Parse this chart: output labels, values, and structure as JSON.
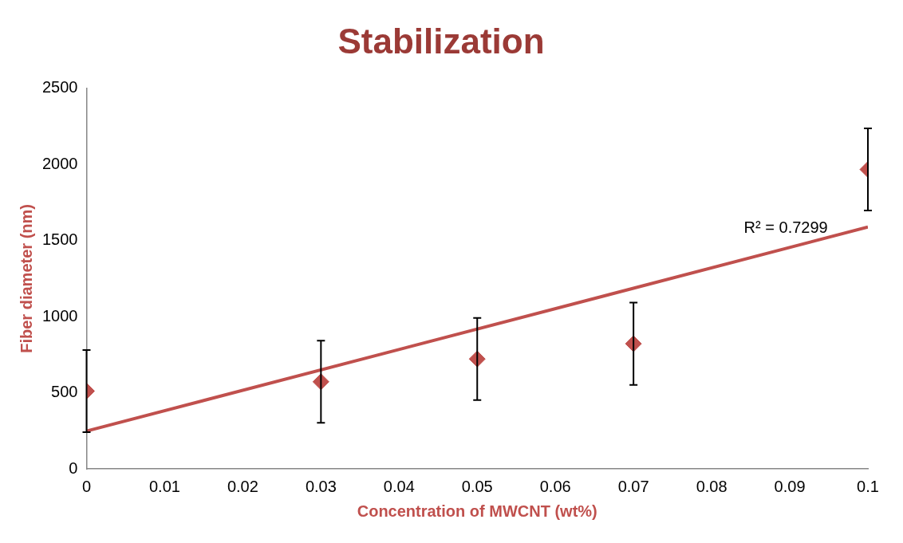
{
  "chart_data": {
    "type": "scatter",
    "title": "Stabilization",
    "xlabel": "Concentration of MWCNT (wt%)",
    "ylabel": "Fiber diameter (nm)",
    "xlim": [
      0,
      0.1
    ],
    "xticks": [
      0,
      0.01,
      0.02,
      0.03,
      0.04,
      0.05,
      0.06,
      0.07,
      0.08,
      0.09,
      0.1
    ],
    "ylim": [
      0,
      2500
    ],
    "yticks": [
      0,
      500,
      1000,
      1500,
      2000,
      2500
    ],
    "grid": false,
    "series": [
      {
        "type": "scatter",
        "color": "#c0504d",
        "marker": "diamond",
        "x": [
          0,
          0.03,
          0.05,
          0.07,
          0.1
        ],
        "values": [
          511,
          572,
          722,
          822,
          1967
        ],
        "errors": [
          270,
          270,
          270,
          270,
          270
        ]
      },
      {
        "type": "line",
        "color": "#c0504d",
        "marker": "none",
        "line_style": "solid",
        "x": [
          0,
          0.1
        ],
        "values": [
          248,
          1589
        ]
      }
    ],
    "annotations": [
      "R² = 0.7299"
    ]
  }
}
